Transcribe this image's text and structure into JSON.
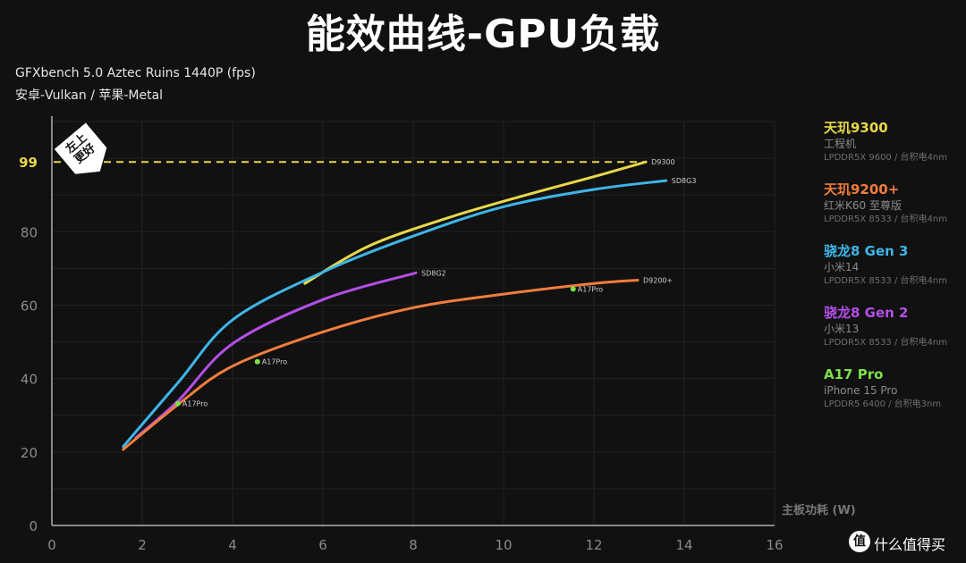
{
  "chart_data": {
    "type": "line",
    "title": "能效曲线-GPU负载",
    "subtitle_lines": [
      "GFXbench 5.0 Aztec Ruins 1440P (fps)",
      "安卓-Vulkan / 苹果-Metal"
    ],
    "xlabel": "主板功耗 (W)",
    "xlim": [
      0,
      16
    ],
    "ylim": [
      0,
      110
    ],
    "x_ticks": [
      0,
      2,
      4,
      6,
      8,
      10,
      12,
      14,
      16
    ],
    "y_ticks": [
      0,
      20,
      40,
      60,
      80
    ],
    "grid": true,
    "reference_line": {
      "y": 99,
      "label": "99",
      "color": "#e8d84a",
      "style": "dashed"
    },
    "badge": "左上更好",
    "legend_placement": "right",
    "series": [
      {
        "name": "D9300",
        "color": "#e8d84a",
        "x": [
          5.6,
          7,
          8.75,
          10.5,
          12,
          13.15
        ],
        "y": [
          65.9,
          76,
          83.7,
          90,
          95,
          99
        ]
      },
      {
        "name": "SD8G3",
        "color": "#3eb5e8",
        "x": [
          1.58,
          2.8,
          4,
          6,
          8,
          10,
          12,
          13.6
        ],
        "y": [
          21.5,
          39,
          56,
          69,
          78.8,
          86.8,
          91.5,
          93.9
        ]
      },
      {
        "name": "SD8G2",
        "color": "#b44ee8",
        "x": [
          1.86,
          2.8,
          4,
          6,
          8.06
        ],
        "y": [
          23.9,
          34,
          49.5,
          61.5,
          68.8
        ]
      },
      {
        "name": "D9200+",
        "color": "#f07d3e",
        "x": [
          1.58,
          2.8,
          4,
          6,
          8,
          10,
          12,
          12.97
        ],
        "y": [
          20.7,
          33,
          43.4,
          52.7,
          59.3,
          63,
          65.9,
          66.8
        ]
      }
    ],
    "points": {
      "name": "A17Pro",
      "color": "#7ee04a",
      "x": [
        2.79,
        4.55,
        11.54
      ],
      "y": [
        33.2,
        44.6,
        64.4
      ]
    }
  },
  "legend": [
    {
      "name": "天玑9300",
      "device": "工程机",
      "memory": "LPDDR5X 9600 / 台积电4nm",
      "color": "#e8d84a"
    },
    {
      "name": "天玑9200+",
      "device": "红米K60 至尊版",
      "memory": "LPDDR5X 8533 / 台积电4nm",
      "color": "#f07d3e"
    },
    {
      "name": "骁龙8 Gen 3",
      "device": "小米14",
      "memory": "LPDDR5X 8533 / 台积电4nm",
      "color": "#3eb5e8"
    },
    {
      "name": "骁龙8 Gen 2",
      "device": "小米13",
      "memory": "LPDDR5X 8533 / 台积电4nm",
      "color": "#b44ee8"
    },
    {
      "name": "A17 Pro",
      "device": "iPhone 15 Pro",
      "memory": "LPDDR5 6400 / 台积电3nm",
      "color": "#7ee04a"
    }
  ],
  "watermark": {
    "logo": "值",
    "brand": "什么值得买"
  }
}
